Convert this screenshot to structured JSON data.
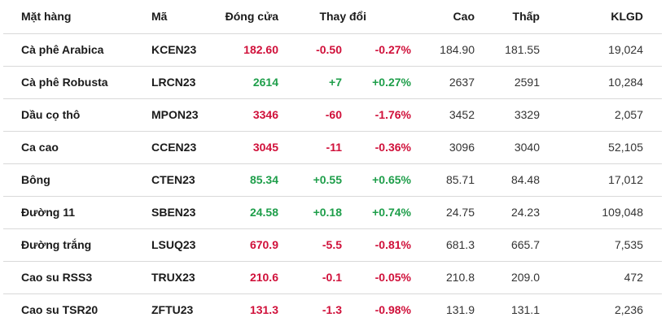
{
  "headers": {
    "name": "Mặt hàng",
    "code": "Mã",
    "close": "Đóng cửa",
    "change": "Thay đổi",
    "high": "Cao",
    "low": "Thấp",
    "volume": "KLGD"
  },
  "colors": {
    "up": "#1e9e4a",
    "down": "#d0103a"
  },
  "rows": [
    {
      "name": "Cà phê Arabica",
      "code": "KCEN23",
      "close": "182.60",
      "change": "-0.50",
      "pct": "-0.27%",
      "high": "184.90",
      "low": "181.55",
      "volume": "19,024",
      "direction": "down"
    },
    {
      "name": "Cà phê Robusta",
      "code": "LRCN23",
      "close": "2614",
      "change": "+7",
      "pct": "+0.27%",
      "high": "2637",
      "low": "2591",
      "volume": "10,284",
      "direction": "up"
    },
    {
      "name": "Dầu cọ thô",
      "code": "MPON23",
      "close": "3346",
      "change": "-60",
      "pct": "-1.76%",
      "high": "3452",
      "low": "3329",
      "volume": "2,057",
      "direction": "down"
    },
    {
      "name": "Ca cao",
      "code": "CCEN23",
      "close": "3045",
      "change": "-11",
      "pct": "-0.36%",
      "high": "3096",
      "low": "3040",
      "volume": "52,105",
      "direction": "down"
    },
    {
      "name": "Bông",
      "code": "CTEN23",
      "close": "85.34",
      "change": "+0.55",
      "pct": "+0.65%",
      "high": "85.71",
      "low": "84.48",
      "volume": "17,012",
      "direction": "up"
    },
    {
      "name": "Đường 11",
      "code": "SBEN23",
      "close": "24.58",
      "change": "+0.18",
      "pct": "+0.74%",
      "high": "24.75",
      "low": "24.23",
      "volume": "109,048",
      "direction": "up"
    },
    {
      "name": "Đường trắng",
      "code": "LSUQ23",
      "close": "670.9",
      "change": "-5.5",
      "pct": "-0.81%",
      "high": "681.3",
      "low": "665.7",
      "volume": "7,535",
      "direction": "down"
    },
    {
      "name": "Cao su RSS3",
      "code": "TRUX23",
      "close": "210.6",
      "change": "-0.1",
      "pct": "-0.05%",
      "high": "210.8",
      "low": "209.0",
      "volume": "472",
      "direction": "down"
    },
    {
      "name": "Cao su TSR20",
      "code": "ZFTU23",
      "close": "131.3",
      "change": "-1.3",
      "pct": "-0.98%",
      "high": "131.9",
      "low": "131.1",
      "volume": "2,236",
      "direction": "down"
    }
  ]
}
